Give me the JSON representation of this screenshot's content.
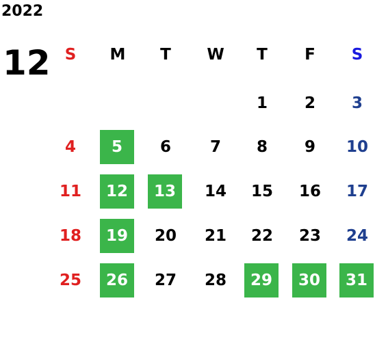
{
  "calendar": {
    "year": "2022",
    "month": "12",
    "weekdays": [
      "S",
      "M",
      "T",
      "W",
      "T",
      "F",
      "S"
    ],
    "weekday_colors": [
      "#e02020",
      "#000000",
      "#000000",
      "#000000",
      "#000000",
      "#000000",
      "#1a1adf"
    ],
    "day_colors": [
      "#e02020",
      "#000000",
      "#000000",
      "#000000",
      "#000000",
      "#000000",
      "#1f3f8f"
    ],
    "highlight_color": "#3bb54a",
    "highlight_text_color": "#ffffff",
    "weeks": [
      [
        null,
        null,
        null,
        null,
        {
          "day": "1",
          "highlight": false
        },
        {
          "day": "2",
          "highlight": false
        },
        {
          "day": "3",
          "highlight": false
        }
      ],
      [
        {
          "day": "4",
          "highlight": false
        },
        {
          "day": "5",
          "highlight": true
        },
        {
          "day": "6",
          "highlight": false
        },
        {
          "day": "7",
          "highlight": false
        },
        {
          "day": "8",
          "highlight": false
        },
        {
          "day": "9",
          "highlight": false
        },
        {
          "day": "10",
          "highlight": false
        }
      ],
      [
        {
          "day": "11",
          "highlight": false
        },
        {
          "day": "12",
          "highlight": true
        },
        {
          "day": "13",
          "highlight": true
        },
        {
          "day": "14",
          "highlight": false
        },
        {
          "day": "15",
          "highlight": false
        },
        {
          "day": "16",
          "highlight": false
        },
        {
          "day": "17",
          "highlight": false
        }
      ],
      [
        {
          "day": "18",
          "highlight": false
        },
        {
          "day": "19",
          "highlight": true
        },
        {
          "day": "20",
          "highlight": false
        },
        {
          "day": "21",
          "highlight": false
        },
        {
          "day": "22",
          "highlight": false
        },
        {
          "day": "23",
          "highlight": false
        },
        {
          "day": "24",
          "highlight": false
        }
      ],
      [
        {
          "day": "25",
          "highlight": false
        },
        {
          "day": "26",
          "highlight": true
        },
        {
          "day": "27",
          "highlight": false
        },
        {
          "day": "28",
          "highlight": false
        },
        {
          "day": "29",
          "highlight": true
        },
        {
          "day": "30",
          "highlight": true
        },
        {
          "day": "31",
          "highlight": true
        }
      ]
    ]
  }
}
